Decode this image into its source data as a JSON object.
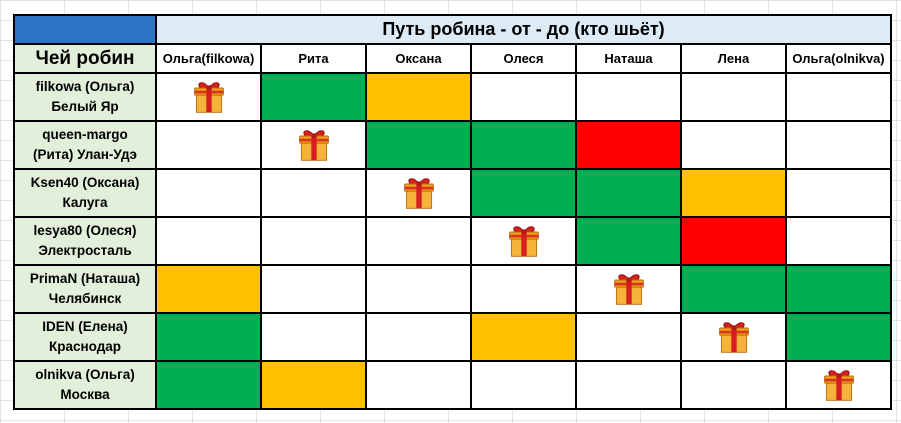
{
  "title": "Путь робина - от - до (кто шьёт)",
  "row_header_title": "Чей робин",
  "columns": [
    "Ольга(filkowa)",
    "Рита",
    "Оксана",
    "Олеся",
    "Наташа",
    "Лена",
    "Ольга(olnikva)"
  ],
  "rows": [
    {
      "line1": "filkowa (Ольга)",
      "line2": "Белый Яр",
      "cells": [
        "gift",
        "green",
        "yellow",
        "",
        "",
        "",
        ""
      ]
    },
    {
      "line1": "queen-margo",
      "line2": "(Рита) Улан-Удэ",
      "cells": [
        "",
        "gift",
        "green",
        "green",
        "red",
        "",
        ""
      ]
    },
    {
      "line1": "Ksen40 (Оксана)",
      "line2": "Калуга",
      "cells": [
        "",
        "",
        "gift",
        "green",
        "green",
        "yellow",
        ""
      ]
    },
    {
      "line1": "lesya80 (Олеся)",
      "line2": "Электросталь",
      "cells": [
        "",
        "",
        "",
        "gift",
        "green",
        "red",
        ""
      ]
    },
    {
      "line1": "PrimaN (Наташа)",
      "line2": "Челябинск",
      "cells": [
        "yellow",
        "",
        "",
        "",
        "gift",
        "green",
        "green"
      ]
    },
    {
      "line1": "IDEN (Елена)",
      "line2": "Краснодар",
      "cells": [
        "green",
        "",
        "",
        "yellow",
        "",
        "gift",
        "green"
      ]
    },
    {
      "line1": "olnikva (Ольга)",
      "line2": "Москва",
      "cells": [
        "green",
        "yellow",
        "",
        "",
        "",
        "",
        "gift"
      ]
    }
  ],
  "colors": {
    "green": "#00b050",
    "yellow": "#ffc000",
    "red": "#ff0000",
    "header_blue": "#2e74c4",
    "title_bg": "#ddebf7",
    "name_bg": "#e2efda"
  },
  "icons": {
    "gift": "gift-box-icon"
  }
}
